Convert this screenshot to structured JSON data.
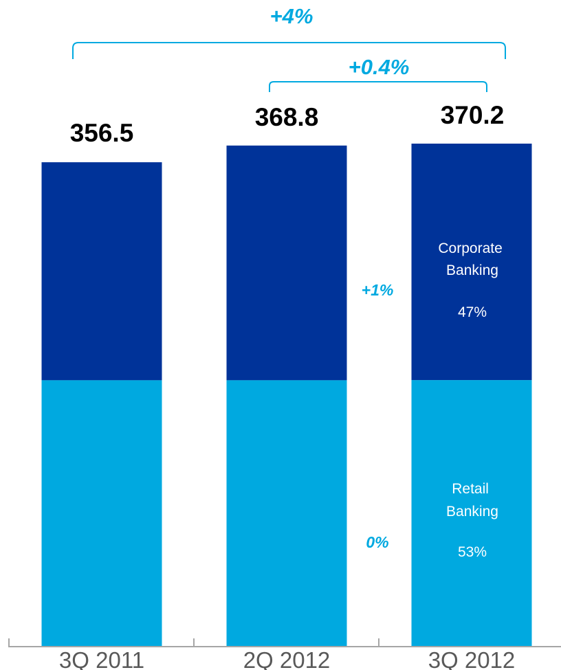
{
  "colors": {
    "corporate": "#003399",
    "retail": "#00a9e0",
    "accent": "#00a9e0",
    "axis": "#a6a6a6"
  },
  "chart_data": {
    "type": "bar",
    "stacked": true,
    "categories": [
      "3Q 2011",
      "2Q 2012",
      "3Q 2012"
    ],
    "totals": [
      356.5,
      368.8,
      370.2
    ],
    "total_labels": [
      "356.5",
      "368.8",
      "370.2"
    ],
    "series": [
      {
        "name": "Retail Banking",
        "values": [
          196.1,
          196.1,
          196.2
        ]
      },
      {
        "name": "Corporate Banking",
        "values": [
          160.4,
          172.7,
          174.0
        ]
      }
    ],
    "ylim": [
      0,
      380
    ],
    "grid": false,
    "legend": "none",
    "segment_labels": {
      "corporate_name": "Corporate\nBanking",
      "corporate_share": "47%",
      "retail_name": "Retail\nBanking",
      "retail_share": "53%"
    },
    "annotations": {
      "overall_growth": "+4%",
      "quarter_growth": "+0.4%",
      "corporate_growth": "+1%",
      "retail_growth": "0%"
    }
  }
}
